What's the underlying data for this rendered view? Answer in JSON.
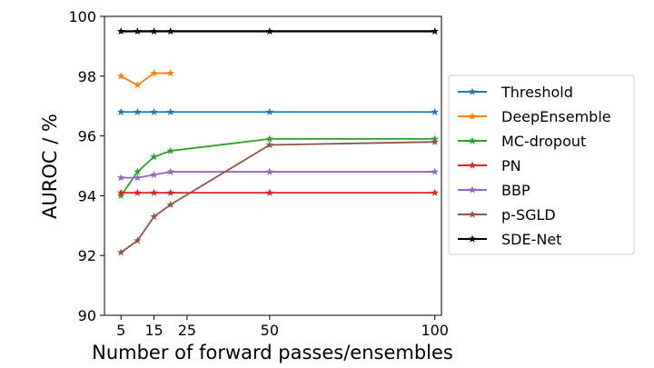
{
  "chart_data": {
    "type": "line",
    "title": "",
    "xlabel": "Number of forward passes/ensembles",
    "ylabel": "AUROC / %",
    "xlim": [
      0,
      102
    ],
    "ylim": [
      90,
      100
    ],
    "xticks": [
      5,
      15,
      25,
      50,
      100
    ],
    "yticks": [
      90,
      92,
      94,
      96,
      98,
      100
    ],
    "grid": false,
    "legend_position": "right",
    "series": [
      {
        "name": "Threshold",
        "color": "#1f77b4",
        "x": [
          5,
          10,
          15,
          20,
          50,
          100
        ],
        "y": [
          96.8,
          96.8,
          96.8,
          96.8,
          96.8,
          96.8
        ]
      },
      {
        "name": "DeepEnsemble",
        "color": "#ff7f0e",
        "x": [
          5,
          10,
          15,
          20
        ],
        "y": [
          98.0,
          97.7,
          98.1,
          98.1
        ]
      },
      {
        "name": "MC-dropout",
        "color": "#2ca02c",
        "x": [
          5,
          10,
          15,
          20,
          50,
          100
        ],
        "y": [
          94.0,
          94.8,
          95.3,
          95.5,
          95.9,
          95.9
        ]
      },
      {
        "name": "PN",
        "color": "#d62728",
        "x": [
          5,
          10,
          15,
          20,
          50,
          100
        ],
        "y": [
          94.1,
          94.1,
          94.1,
          94.1,
          94.1,
          94.1
        ]
      },
      {
        "name": "BBP",
        "color": "#9467bd",
        "x": [
          5,
          10,
          15,
          20,
          50,
          100
        ],
        "y": [
          94.6,
          94.6,
          94.7,
          94.8,
          94.8,
          94.8
        ]
      },
      {
        "name": "p-SGLD",
        "color": "#8c564b",
        "x": [
          5,
          10,
          15,
          20,
          50,
          100
        ],
        "y": [
          92.1,
          92.5,
          93.3,
          93.7,
          95.7,
          95.8
        ]
      },
      {
        "name": "SDE-Net",
        "color": "#000000",
        "x": [
          5,
          10,
          15,
          20,
          50,
          100
        ],
        "y": [
          99.5,
          99.5,
          99.5,
          99.5,
          99.5,
          99.5
        ]
      }
    ]
  }
}
